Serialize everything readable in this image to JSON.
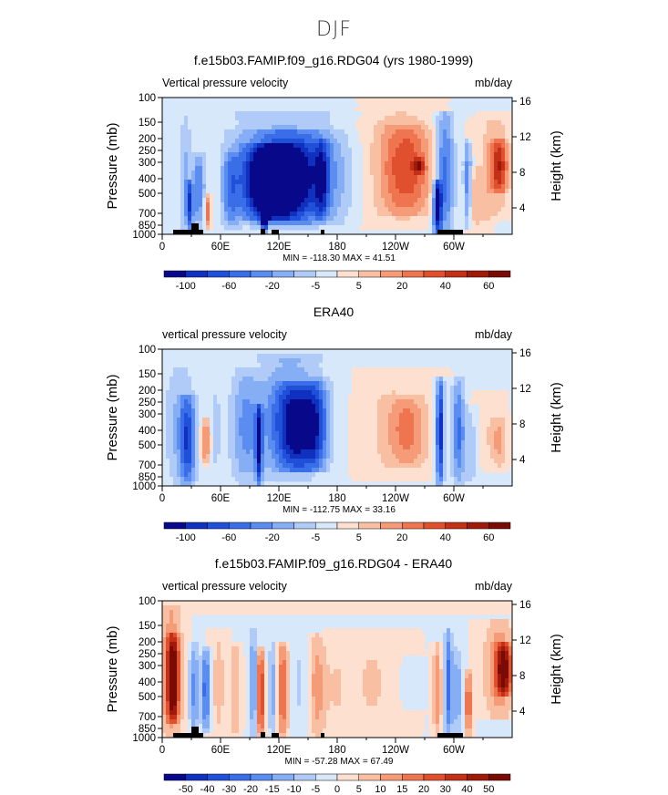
{
  "page": {
    "title": "DJF"
  },
  "chart_data": [
    {
      "type": "heatmap",
      "title": "f.e15b03.FAMIP.f09_g16.RDG04 (yrs 1980-1999)",
      "left_label": "Vertical pressure velocity",
      "right_label": "mb/day",
      "ylabel": "Pressure (mb)",
      "ylabel_right": "Height (km)",
      "x_ticks": [
        "0",
        "60E",
        "120E",
        "180",
        "120W",
        "60W"
      ],
      "y_ticks": [
        "100",
        "150",
        "200",
        "250",
        "300",
        "400",
        "500",
        "700",
        "850",
        "1000"
      ],
      "y_ticks_right": [
        "16",
        "12",
        "8",
        "4"
      ],
      "stats": {
        "min_label": "MIN =",
        "min": "-118.30",
        "max_label": "MAX =",
        "max": "41.51"
      },
      "colorbar_labels": [
        "-100",
        "-60",
        "-20",
        "-5",
        "5",
        "20",
        "40",
        "60"
      ],
      "colorbar_colors": [
        "#08088a",
        "#1030c0",
        "#2050d8",
        "#3a6ee8",
        "#5b8cf0",
        "#86aef5",
        "#b0cbf8",
        "#d8e8fb",
        "#fde0d0",
        "#f9bfa3",
        "#f59b78",
        "#ef7550",
        "#e0502e",
        "#c23018",
        "#a01a0c",
        "#7a0a04"
      ]
    },
    {
      "type": "heatmap",
      "title": "ERA40",
      "left_label": "vertical pressure velocity",
      "right_label": "mb/day",
      "ylabel": "Pressure (mb)",
      "ylabel_right": "Height (km)",
      "x_ticks": [
        "0",
        "60E",
        "120E",
        "180",
        "120W",
        "60W"
      ],
      "y_ticks": [
        "100",
        "150",
        "200",
        "250",
        "300",
        "400",
        "500",
        "700",
        "850",
        "1000"
      ],
      "y_ticks_right": [
        "16",
        "12",
        "8",
        "4"
      ],
      "stats": {
        "min_label": "MIN =",
        "min": "-112.75",
        "max_label": "MAX =",
        "max": "33.16"
      },
      "colorbar_labels": [
        "-100",
        "-60",
        "-20",
        "-5",
        "5",
        "20",
        "40",
        "60"
      ],
      "colorbar_colors": [
        "#08088a",
        "#1030c0",
        "#2050d8",
        "#3a6ee8",
        "#5b8cf0",
        "#86aef5",
        "#b0cbf8",
        "#d8e8fb",
        "#fde0d0",
        "#f9bfa3",
        "#f59b78",
        "#ef7550",
        "#e0502e",
        "#c23018",
        "#a01a0c",
        "#7a0a04"
      ]
    },
    {
      "type": "heatmap",
      "title": "f.e15b03.FAMIP.f09_g16.RDG04 - ERA40",
      "left_label": "vertical pressure velocity",
      "right_label": "mb/day",
      "ylabel": "Pressure (mb)",
      "ylabel_right": "Height (km)",
      "x_ticks": [
        "0",
        "60E",
        "120E",
        "180",
        "120W",
        "60W"
      ],
      "y_ticks": [
        "100",
        "150",
        "200",
        "250",
        "300",
        "400",
        "500",
        "700",
        "850",
        "1000"
      ],
      "y_ticks_right": [
        "16",
        "12",
        "8",
        "4"
      ],
      "stats": {
        "min_label": "MIN =",
        "min": "-57.28",
        "max_label": "MAX =",
        "max": "67.49"
      },
      "colorbar_labels": [
        "-50",
        "-40",
        "-30",
        "-20",
        "-15",
        "-10",
        "-5",
        "0",
        "5",
        "10",
        "15",
        "20",
        "30",
        "40",
        "50"
      ],
      "colorbar_colors": [
        "#08088a",
        "#1030c0",
        "#2050d8",
        "#3a6ee8",
        "#5b8cf0",
        "#86aef5",
        "#b0cbf8",
        "#d8e8fb",
        "#fde0d0",
        "#f9bfa3",
        "#f59b78",
        "#ef7550",
        "#e0502e",
        "#c23018",
        "#a01a0c",
        "#7a0a04"
      ]
    }
  ]
}
